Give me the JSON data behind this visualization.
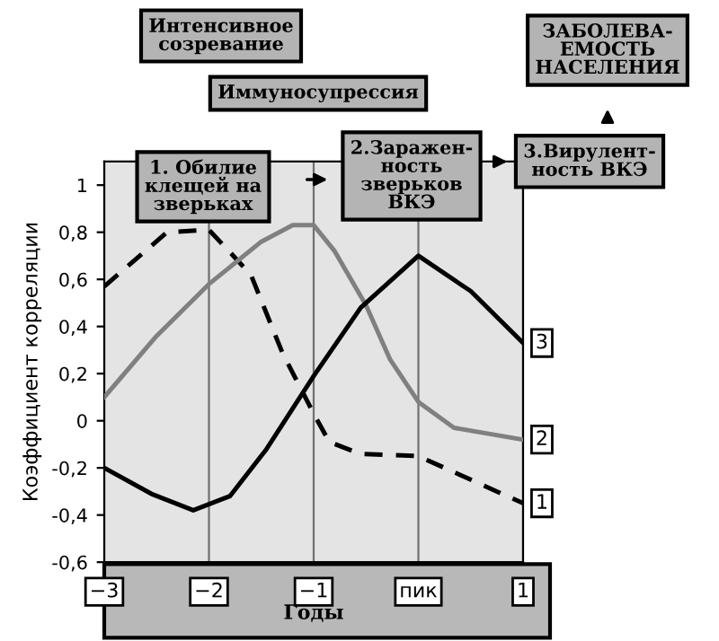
{
  "chart_data": {
    "type": "line",
    "xlabel": "Годы",
    "ylabel": "Коэффициент корреляции",
    "xlim": [
      -3,
      1
    ],
    "ylim": [
      -0.6,
      1.1
    ],
    "xticks": [
      {
        "value": -3,
        "label": "−3"
      },
      {
        "value": -2,
        "label": "−2"
      },
      {
        "value": -1,
        "label": "−1"
      },
      {
        "value": 0,
        "label": "пик"
      },
      {
        "value": 1,
        "label": "1"
      }
    ],
    "yticks": [
      {
        "value": -0.6,
        "label": "-0,6"
      },
      {
        "value": -0.4,
        "label": "-0,4"
      },
      {
        "value": -0.2,
        "label": "-0,2"
      },
      {
        "value": 0,
        "label": "0"
      },
      {
        "value": 0.2,
        "label": "0,2"
      },
      {
        "value": 0.4,
        "label": "0,4"
      },
      {
        "value": 0.6,
        "label": "0,6"
      },
      {
        "value": 0.8,
        "label": "0,8"
      },
      {
        "value": 1,
        "label": "1"
      }
    ],
    "grid": "x",
    "marker": "none",
    "series": [
      {
        "name": "1",
        "color": "#000000",
        "line_style": "dashed",
        "x": [
          -3,
          -2.4,
          -2,
          -1.6,
          -1.3,
          -1,
          -0.85,
          -0.56,
          0,
          0.5,
          1
        ],
        "values": [
          0.57,
          0.8,
          0.81,
          0.62,
          0.29,
          0.03,
          -0.09,
          -0.14,
          -0.15,
          -0.25,
          -0.35
        ]
      },
      {
        "name": "2",
        "color": "#808080",
        "line_style": "solid",
        "x": [
          -3,
          -2.5,
          -2,
          -1.5,
          -1.2,
          -1,
          -0.8,
          -0.5,
          -0.27,
          0,
          0.34,
          1
        ],
        "values": [
          0.1,
          0.36,
          0.58,
          0.76,
          0.83,
          0.83,
          0.72,
          0.49,
          0.26,
          0.08,
          -0.03,
          -0.08
        ]
      },
      {
        "name": "3",
        "color": "#000000",
        "line_style": "solid",
        "x": [
          -3,
          -2.55,
          -2.15,
          -1.8,
          -1.45,
          -1,
          -0.55,
          0,
          0.5,
          1
        ],
        "values": [
          -0.2,
          -0.31,
          -0.38,
          -0.32,
          -0.12,
          0.19,
          0.48,
          0.7,
          0.55,
          0.33
        ]
      }
    ],
    "annotations": [
      "Интенсивное\nсозревание",
      "Иммуносупрессия",
      "1. Обилие\nклещей на\nзверьках",
      "2.Заражен-\nность\nзверьков\nВКЭ",
      "3.Вирулент-\nность ВКЭ",
      "ЗАБОЛЕВА-\nЕМОСТЬ\nНАСЕЛЕНИЯ"
    ]
  }
}
